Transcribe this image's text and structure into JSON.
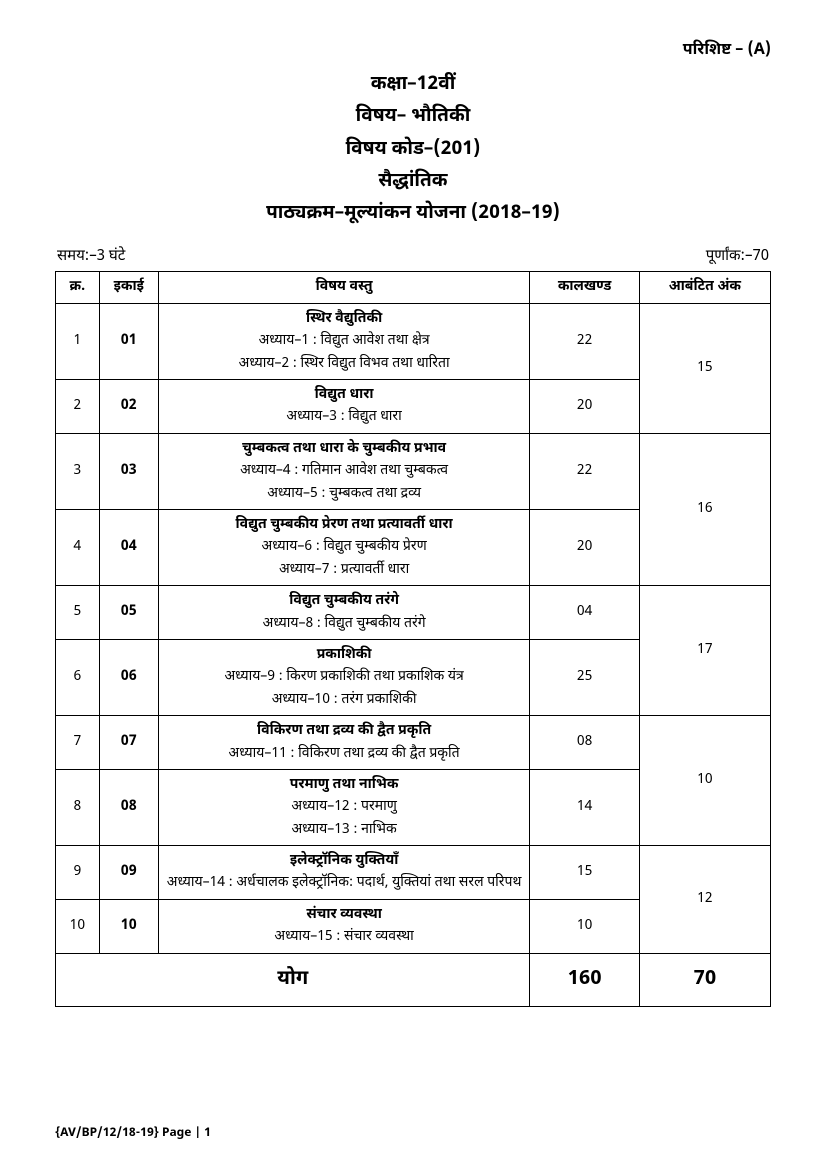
{
  "appendix": "परिशिष्ट – (A)",
  "header": {
    "l1": "कक्षा–12वीं",
    "l2": "विषय– भौतिकी",
    "l3": "विषय कोड–(201)",
    "l4": "सैद्धांतिक",
    "l5": "पाठ्यक्रम–मूल्यांकन योजना (2018–19)"
  },
  "meta": {
    "time": "समय:–3 घंटे",
    "marks": "पूर्णांक:–70"
  },
  "columns": {
    "sn": "क्र.",
    "unit": "इकाई",
    "topic": "विषय वस्तु",
    "periods": "कालखण्ड",
    "allotted": "आबंटित अंक"
  },
  "rows": [
    {
      "sn": "1",
      "unit": "01",
      "title": "स्थिर वैद्युतिकी",
      "lines": [
        "अध्याय–1 : विद्युत आवेश तथा क्षेत्र",
        "अध्याय–2 : स्थिर विद्युत विभव तथा धारिता"
      ],
      "periods": "22"
    },
    {
      "sn": "2",
      "unit": "02",
      "title": "विद्युत धारा",
      "lines": [
        "अध्याय–3 : विद्युत धारा"
      ],
      "periods": "20"
    },
    {
      "sn": "3",
      "unit": "03",
      "title": "चुम्बकत्व तथा धारा के चुम्बकीय प्रभाव",
      "lines": [
        "अध्याय–4 : गतिमान आवेश तथा चुम्बकत्व",
        "अध्याय–5 : चुम्बकत्व तथा द्रव्य"
      ],
      "periods": "22"
    },
    {
      "sn": "4",
      "unit": "04",
      "title": "विद्युत चुम्बकीय प्रेरण तथा प्रत्यावर्ती धारा",
      "lines": [
        "अध्याय–6 : विद्युत चुम्बकीय प्रेरण",
        "अध्याय–7 : प्रत्यावर्ती धारा"
      ],
      "periods": "20"
    },
    {
      "sn": "5",
      "unit": "05",
      "title": "विद्युत चुम्बकीय तरंगे",
      "lines": [
        "अध्याय–8 : विद्युत चुम्बकीय तरंगे"
      ],
      "periods": "04"
    },
    {
      "sn": "6",
      "unit": "06",
      "title": "प्रकाशिकी",
      "lines": [
        "अध्याय–9 : किरण प्रकाशिकी तथा प्रकाशिक यंत्र",
        "अध्याय–10 : तरंग प्रकाशिकी"
      ],
      "periods": "25"
    },
    {
      "sn": "7",
      "unit": "07",
      "title": "विकिरण तथा द्रव्य की द्वैत प्रकृति",
      "lines": [
        "अध्याय–11 :   विकिरण तथा द्रव्य की द्वैत प्रकृति"
      ],
      "periods": "08"
    },
    {
      "sn": "8",
      "unit": "08",
      "title": "परमाणु तथा नाभिक",
      "lines": [
        "अध्याय–12 : परमाणु",
        "अध्याय–13 : नाभिक"
      ],
      "periods": "14"
    },
    {
      "sn": "9",
      "unit": "09",
      "title": "इलेक्ट्रॉनिक युक्तियाँ",
      "lines": [
        "अध्याय–14 : अर्धचालक इलेक्ट्रॉनिक: पदार्थ, युक्तियां तथा सरल परिपथ"
      ],
      "periods": "15"
    },
    {
      "sn": "10",
      "unit": "10",
      "title": "संचार व्यवस्था",
      "lines": [
        "अध्याय–15 : संचार व्यवस्था"
      ],
      "periods": "10"
    }
  ],
  "groupMarks": [
    "15",
    "16",
    "17",
    "10",
    "12"
  ],
  "total": {
    "label": "योग",
    "periods": "160",
    "marks": "70"
  },
  "footer": "{AV/BP/12/18-19}  Page | 1"
}
